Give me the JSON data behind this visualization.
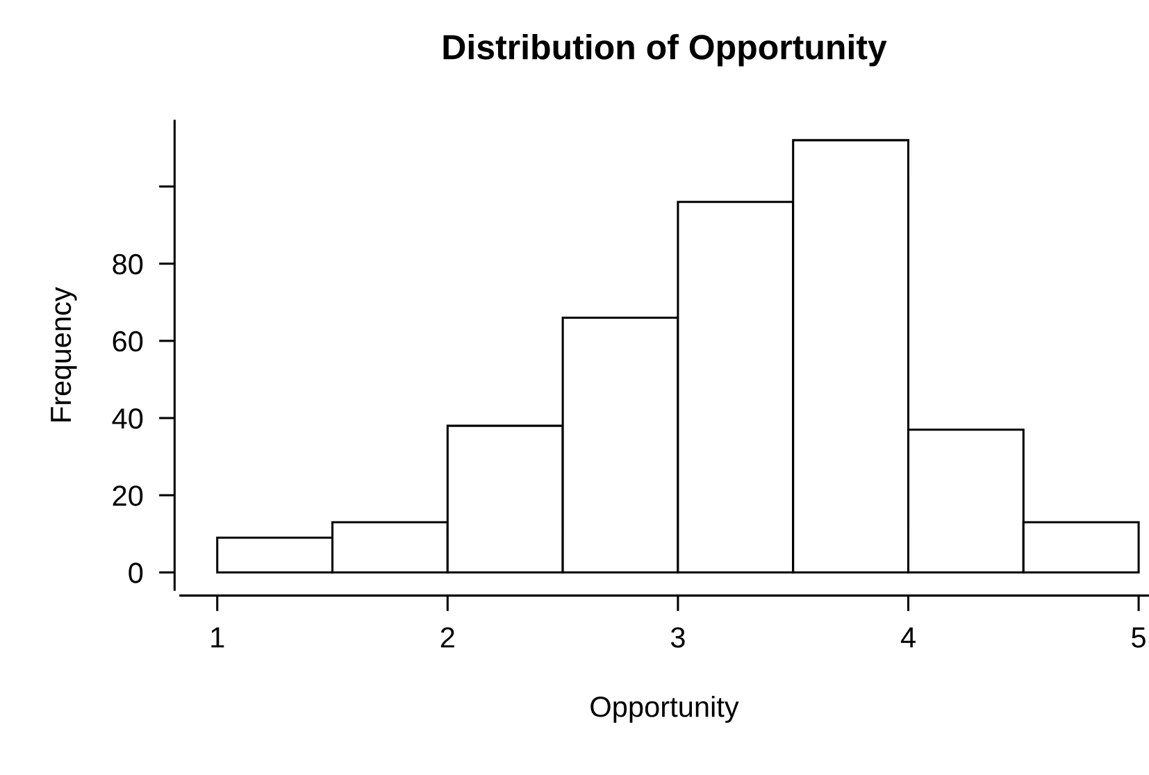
{
  "chart_data": {
    "type": "histogram",
    "title": "Distribution of Opportunity",
    "xlabel": "Opportunity",
    "ylabel": "Frequency",
    "bins": [
      1,
      1.5,
      2,
      2.5,
      3,
      3.5,
      4,
      4.5,
      5
    ],
    "values": [
      9,
      13,
      38,
      66,
      96,
      112,
      37,
      13
    ],
    "color": "#ffffff",
    "xlim": [
      0.84,
      5.04
    ],
    "ylim": [
      -4.5,
      117
    ],
    "xticks": [
      1,
      2,
      3,
      4,
      5
    ],
    "yticks": [
      0,
      20,
      40,
      60,
      80,
      {
        "value": 100,
        "label": null
      }
    ],
    "grid": false
  }
}
